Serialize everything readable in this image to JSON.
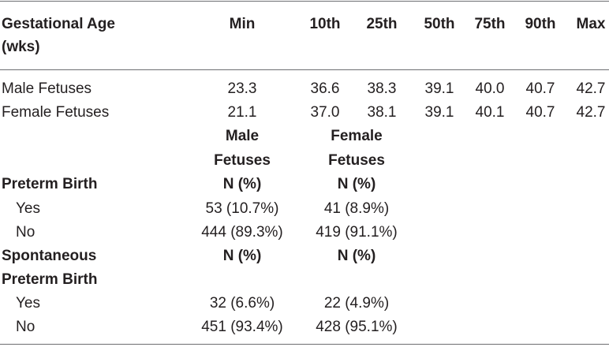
{
  "table1": {
    "header": {
      "row_label": [
        "Gestational Age",
        "(wks)"
      ],
      "columns": [
        "Min",
        "10th",
        "25th",
        "50th",
        "75th",
        "90th",
        "Max"
      ]
    },
    "rows": [
      {
        "label": "Male Fetuses",
        "values": [
          "23.3",
          "36.6",
          "38.3",
          "39.1",
          "40.0",
          "40.7",
          "42.7"
        ]
      },
      {
        "label": "Female Fetuses",
        "values": [
          "21.1",
          "37.0",
          "38.1",
          "39.1",
          "40.1",
          "40.7",
          "42.7"
        ]
      }
    ]
  },
  "table2": {
    "group_headers": {
      "male": [
        "Male",
        "Fetuses"
      ],
      "female": [
        "Female",
        "Fetuses"
      ]
    },
    "sections": [
      {
        "title": [
          "Preterm Birth"
        ],
        "col_male": "N (%)",
        "col_female": "N (%)",
        "rows": [
          {
            "label": "Yes",
            "male": "53 (10.7%)",
            "female": "41 (8.9%)"
          },
          {
            "label": "No",
            "male": "444 (89.3%)",
            "female": "419 (91.1%)"
          }
        ]
      },
      {
        "title": [
          "Spontaneous",
          "Preterm Birth"
        ],
        "col_male": "N (%)",
        "col_female": "N (%)",
        "rows": [
          {
            "label": "Yes",
            "male": "32 (6.6%)",
            "female": "22 (4.9%)"
          },
          {
            "label": "No",
            "male": "451 (93.4%)",
            "female": "428 (95.1%)"
          }
        ]
      }
    ]
  }
}
